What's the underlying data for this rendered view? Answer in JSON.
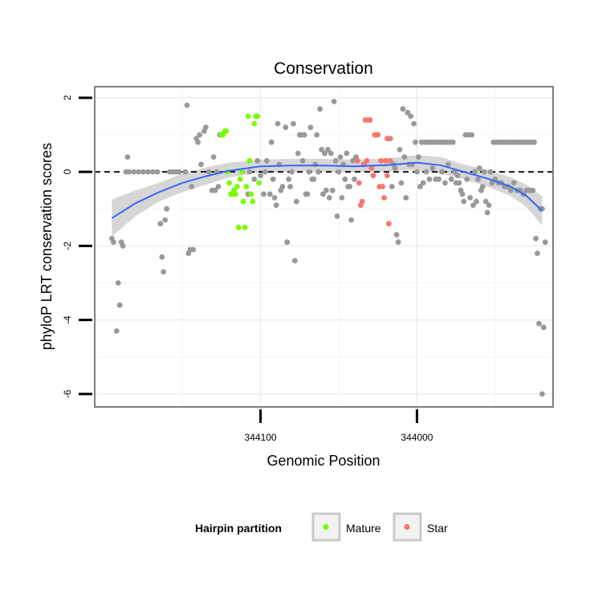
{
  "chart_data": {
    "type": "scatter",
    "title": "Conservation",
    "xlabel": "Genomic Position",
    "ylabel": "phyloP LRT conservation scores",
    "x_reversed": true,
    "xlim": [
      344206,
      343913
    ],
    "ylim": [
      -6.35,
      2.3
    ],
    "x_ticks": [
      344100,
      344000
    ],
    "x_tick_labels": [
      "344100",
      "344000"
    ],
    "y_ticks": [
      2,
      0,
      -2,
      -4,
      -6
    ],
    "y_tick_labels": [
      "2",
      "0",
      "-2",
      "-4",
      "-6"
    ],
    "grid": true,
    "reference_line": {
      "y": 0,
      "style": "dashed"
    },
    "legend": {
      "title": "Hairpin partition",
      "position": "bottom",
      "entries": [
        {
          "label": "Mature",
          "color": "#7CFC00"
        },
        {
          "label": "Star",
          "color": "#F8766D"
        }
      ]
    },
    "colors": {
      "Other": "#999999",
      "Mature": "#7CFC00",
      "Star": "#F8766D",
      "smooth": "#3366FF",
      "ribbon": "#C8C8C8"
    },
    "series": [
      {
        "name": "Other",
        "color": "#999999",
        "points": [
          [
            344195,
            -1.8
          ],
          [
            344194,
            -1.9
          ],
          [
            344192,
            -4.3
          ],
          [
            344191,
            -3.0
          ],
          [
            344190,
            -3.6
          ],
          [
            344189,
            -1.9
          ],
          [
            344188,
            -2.0
          ],
          [
            344186,
            0.0
          ],
          [
            344185,
            0.4
          ],
          [
            344184,
            0.0
          ],
          [
            344181,
            0.0
          ],
          [
            344178,
            0.0
          ],
          [
            344175,
            0.0
          ],
          [
            344172,
            0.0
          ],
          [
            344169,
            0.0
          ],
          [
            344166,
            0.0
          ],
          [
            344164,
            -1.4
          ],
          [
            344163,
            -2.3
          ],
          [
            344162,
            -2.7
          ],
          [
            344161,
            -1.3
          ],
          [
            344160,
            -1.0
          ],
          [
            344158,
            0.0
          ],
          [
            344156,
            0.0
          ],
          [
            344154,
            0.0
          ],
          [
            344152,
            0.0
          ],
          [
            344148,
            0.0
          ],
          [
            344147,
            1.8
          ],
          [
            344146,
            -2.2
          ],
          [
            344145,
            -2.1
          ],
          [
            344144,
            -0.4
          ],
          [
            344143,
            -2.1
          ],
          [
            344141,
            0.9
          ],
          [
            344140,
            0.8
          ],
          [
            344139,
            1.0
          ],
          [
            344138,
            0.2
          ],
          [
            344136,
            1.1
          ],
          [
            344135,
            1.2
          ],
          [
            344133,
            0.0
          ],
          [
            344131,
            -0.5
          ],
          [
            344130,
            0.4
          ],
          [
            344129,
            -0.5
          ],
          [
            344128,
            0.0
          ],
          [
            344127,
            -0.4
          ],
          [
            344126,
            1.0
          ],
          [
            344108,
            -0.6
          ],
          [
            344107,
            0.0
          ],
          [
            344104,
            -0.2
          ],
          [
            344102,
            0.3
          ],
          [
            344100,
            -0.1
          ],
          [
            344098,
            -0.6
          ],
          [
            344097,
            0.0
          ],
          [
            344096,
            0.3
          ],
          [
            344094,
            -0.6
          ],
          [
            344093,
            0.8
          ],
          [
            344092,
            -0.2
          ],
          [
            344091,
            -0.7
          ],
          [
            344090,
            -0.9
          ],
          [
            344089,
            1.3
          ],
          [
            344088,
            0.2
          ],
          [
            344087,
            -0.5
          ],
          [
            344086,
            -0.4
          ],
          [
            344084,
            1.2
          ],
          [
            344083,
            -1.9
          ],
          [
            344082,
            -0.2
          ],
          [
            344081,
            -0.4
          ],
          [
            344080,
            0.0
          ],
          [
            344079,
            1.3
          ],
          [
            344078,
            -2.4
          ],
          [
            344077,
            -0.8
          ],
          [
            344076,
            0.5
          ],
          [
            344075,
            1.0
          ],
          [
            344074,
            1.0
          ],
          [
            344073,
            0.3
          ],
          [
            344072,
            1.0
          ],
          [
            344071,
            -0.6
          ],
          [
            344070,
            -0.6
          ],
          [
            344069,
            0.0
          ],
          [
            344068,
            1.2
          ],
          [
            344067,
            -0.2
          ],
          [
            344066,
            -0.2
          ],
          [
            344065,
            0.2
          ],
          [
            344064,
            1.0
          ],
          [
            344063,
            0.0
          ],
          [
            344062,
            1.7
          ],
          [
            344061,
            0.6
          ],
          [
            344060,
            -0.6
          ],
          [
            344059,
            0.5
          ],
          [
            344058,
            -0.5
          ],
          [
            344057,
            0.6
          ],
          [
            344056,
            -0.7
          ],
          [
            344055,
            0.5
          ],
          [
            344054,
            -0.5
          ],
          [
            344053,
            1.9
          ],
          [
            344052,
            0.3
          ],
          [
            344051,
            -1.2
          ],
          [
            344050,
            0.0
          ],
          [
            344049,
            0.4
          ],
          [
            344048,
            -0.7
          ],
          [
            344047,
            0.2
          ],
          [
            344046,
            -0.2
          ],
          [
            344045,
            0.5
          ],
          [
            344044,
            -0.4
          ],
          [
            344043,
            -0.4
          ],
          [
            344042,
            -1.3
          ],
          [
            344041,
            0.3
          ],
          [
            344040,
            -0.2
          ],
          [
            344039,
            0.4
          ],
          [
            344017,
            0.9
          ],
          [
            344016,
            -0.4
          ],
          [
            344015,
            0.2
          ],
          [
            344014,
            0.1
          ],
          [
            344013,
            -1.7
          ],
          [
            344012,
            -1.9
          ],
          [
            344011,
            0.6
          ],
          [
            344010,
            -0.3
          ],
          [
            344009,
            1.7
          ],
          [
            344008,
            0.4
          ],
          [
            344007,
            -0.7
          ],
          [
            344006,
            1.6
          ],
          [
            344005,
            0.2
          ],
          [
            344004,
            1.5
          ],
          [
            344003,
            0.2
          ],
          [
            344002,
            1.3
          ],
          [
            344001,
            0.8
          ],
          [
            344000,
            0.0
          ],
          [
            343999,
            0.4
          ],
          [
            343998,
            -0.4
          ],
          [
            343997,
            0.8
          ],
          [
            343996,
            -0.3
          ],
          [
            343995,
            0.8
          ],
          [
            343994,
            0.0
          ],
          [
            343993,
            0.8
          ],
          [
            343992,
            -0.2
          ],
          [
            343991,
            0.8
          ],
          [
            343990,
            0.1
          ],
          [
            343989,
            0.8
          ],
          [
            343988,
            -0.2
          ],
          [
            343987,
            0.8
          ],
          [
            343986,
            -0.2
          ],
          [
            343985,
            0.8
          ],
          [
            343984,
            0.0
          ],
          [
            343983,
            0.8
          ],
          [
            343982,
            -0.3
          ],
          [
            343981,
            0.8
          ],
          [
            343980,
            0.2
          ],
          [
            343979,
            0.8
          ],
          [
            343978,
            -0.2
          ],
          [
            343977,
            0.8
          ],
          [
            343976,
            0.0
          ],
          [
            343975,
            -0.3
          ],
          [
            343974,
            -0.1
          ],
          [
            343973,
            -0.3
          ],
          [
            343972,
            -0.5
          ],
          [
            343971,
            -0.6
          ],
          [
            343970,
            -0.8
          ],
          [
            343969,
            1.0
          ],
          [
            343968,
            -0.2
          ],
          [
            343967,
            1.0
          ],
          [
            343966,
            -0.7
          ],
          [
            343965,
            1.0
          ],
          [
            343964,
            -0.9
          ],
          [
            343963,
            0.0
          ],
          [
            343962,
            -0.8
          ],
          [
            343961,
            -0.2
          ],
          [
            343960,
            0.1
          ],
          [
            343959,
            -0.5
          ],
          [
            343958,
            -0.4
          ],
          [
            343957,
            0.0
          ],
          [
            343956,
            -0.8
          ],
          [
            343955,
            -1.1
          ],
          [
            343954,
            -0.9
          ],
          [
            343953,
            0.0
          ],
          [
            343952,
            -0.3
          ],
          [
            343951,
            0.8
          ],
          [
            343950,
            -0.2
          ],
          [
            343949,
            0.8
          ],
          [
            343948,
            -0.3
          ],
          [
            343947,
            0.8
          ],
          [
            343946,
            -0.3
          ],
          [
            343945,
            0.8
          ],
          [
            343944,
            -0.4
          ],
          [
            343943,
            0.8
          ],
          [
            343942,
            -0.4
          ],
          [
            343941,
            0.8
          ],
          [
            343940,
            -0.5
          ],
          [
            343939,
            0.8
          ],
          [
            343938,
            -0.3
          ],
          [
            343937,
            0.8
          ],
          [
            343936,
            -0.5
          ],
          [
            343935,
            0.8
          ],
          [
            343934,
            -0.5
          ],
          [
            343933,
            0.8
          ],
          [
            343932,
            -0.6
          ],
          [
            343931,
            0.8
          ],
          [
            343930,
            -0.5
          ],
          [
            343929,
            0.8
          ],
          [
            343928,
            -0.5
          ],
          [
            343927,
            0.8
          ],
          [
            343926,
            -0.5
          ],
          [
            343925,
            0.8
          ],
          [
            343924,
            -1.8
          ],
          [
            343923,
            -2.2
          ],
          [
            343922,
            -4.1
          ],
          [
            343921,
            -1.0
          ],
          [
            343920,
            -1.0
          ],
          [
            343919,
            -4.2
          ],
          [
            343918,
            -1.9
          ],
          [
            343920,
            -6.0
          ]
        ]
      },
      {
        "name": "Mature",
        "color": "#7CFC00",
        "points": [
          [
            344125,
            1.0
          ],
          [
            344124,
            1.0
          ],
          [
            344123,
            1.1
          ],
          [
            344122,
            1.1
          ],
          [
            344121,
            0.0
          ],
          [
            344120,
            -0.3
          ],
          [
            344119,
            -0.6
          ],
          [
            344118,
            -0.6
          ],
          [
            344117,
            -0.5
          ],
          [
            344116,
            -0.6
          ],
          [
            344115,
            -0.4
          ],
          [
            344114,
            -1.5
          ],
          [
            344113,
            -0.2
          ],
          [
            344112,
            0.0
          ],
          [
            344111,
            -0.8
          ],
          [
            344110,
            -1.5
          ],
          [
            344109,
            -0.4
          ],
          [
            344108,
            1.5
          ],
          [
            344107,
            0.3
          ],
          [
            344106,
            -0.6
          ],
          [
            344105,
            -0.8
          ],
          [
            344104,
            1.3
          ],
          [
            344103,
            1.5
          ],
          [
            344102,
            1.5
          ],
          [
            344101,
            -0.3
          ]
        ]
      },
      {
        "name": "Star",
        "color": "#F8766D",
        "points": [
          [
            344038,
            0.3
          ],
          [
            344037,
            -0.3
          ],
          [
            344036,
            -0.9
          ],
          [
            344035,
            -0.8
          ],
          [
            344034,
            0.2
          ],
          [
            344033,
            1.4
          ],
          [
            344032,
            0.3
          ],
          [
            344031,
            1.4
          ],
          [
            344030,
            1.4
          ],
          [
            344029,
            0.1
          ],
          [
            344028,
            -0.1
          ],
          [
            344027,
            1.0
          ],
          [
            344026,
            1.0
          ],
          [
            344025,
            1.0
          ],
          [
            344024,
            -0.4
          ],
          [
            344023,
            0.3
          ],
          [
            344022,
            -0.4
          ],
          [
            344021,
            -0.7
          ],
          [
            344020,
            0.3
          ],
          [
            344019,
            0.9
          ],
          [
            344018,
            0.9
          ],
          [
            344019,
            -0.1
          ],
          [
            344018,
            -1.4
          ],
          [
            344017,
            0.3
          ]
        ]
      }
    ],
    "smooth": {
      "method": "loess",
      "x": [
        344195,
        344180,
        344165,
        344150,
        344135,
        344120,
        344100,
        344080,
        344060,
        344040,
        344020,
        344000,
        343985,
        343970,
        343955,
        343940,
        343930,
        343920
      ],
      "y": [
        -1.25,
        -0.85,
        -0.55,
        -0.3,
        -0.12,
        0.03,
        0.15,
        0.17,
        0.17,
        0.15,
        0.18,
        0.25,
        0.18,
        0.0,
        -0.18,
        -0.4,
        -0.65,
        -1.05
      ],
      "lower": [
        -1.75,
        -1.2,
        -0.8,
        -0.55,
        -0.35,
        -0.15,
        -0.02,
        0.02,
        0.02,
        0.0,
        0.02,
        0.05,
        -0.05,
        -0.2,
        -0.4,
        -0.65,
        -0.95,
        -1.45
      ],
      "upper": [
        -0.75,
        -0.5,
        -0.3,
        -0.05,
        0.12,
        0.25,
        0.33,
        0.35,
        0.35,
        0.33,
        0.36,
        0.45,
        0.4,
        0.2,
        0.05,
        -0.15,
        -0.35,
        -0.65
      ]
    }
  }
}
